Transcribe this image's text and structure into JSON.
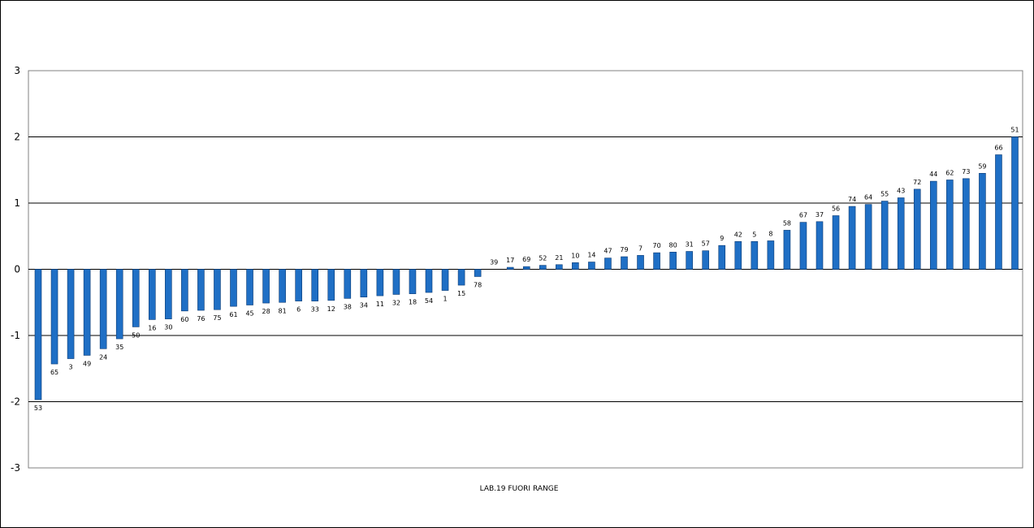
{
  "chart_data": {
    "type": "bar",
    "title": "",
    "xlabel": "",
    "ylabel": "",
    "ylim": [
      -3,
      3
    ],
    "yticks": [
      3,
      2,
      1,
      0,
      -1,
      -2,
      -3
    ],
    "grid": true,
    "legend": "none",
    "annotation": "LAB.19 FUORI RANGE",
    "bar_color": "#1F6FC5",
    "bar_edge_color": "#0B3A73",
    "categories": [
      "53",
      "65",
      "3",
      "49",
      "24",
      "35",
      "50",
      "16",
      "30",
      "60",
      "76",
      "75",
      "61",
      "45",
      "28",
      "81",
      "6",
      "33",
      "12",
      "38",
      "34",
      "11",
      "32",
      "18",
      "54",
      "1",
      "15",
      "78",
      "39",
      "17",
      "69",
      "52",
      "21",
      "10",
      "14",
      "47",
      "79",
      "7",
      "70",
      "80",
      "31",
      "57",
      "9",
      "42",
      "5",
      "8",
      "58",
      "67",
      "37",
      "56",
      "74",
      "64",
      "55",
      "43",
      "72",
      "44",
      "62",
      "73",
      "59",
      "66",
      "51"
    ],
    "values": [
      -1.97,
      -1.43,
      -1.35,
      -1.3,
      -1.2,
      -1.05,
      -0.87,
      -0.76,
      -0.75,
      -0.63,
      -0.62,
      -0.61,
      -0.56,
      -0.54,
      -0.51,
      -0.5,
      -0.48,
      -0.48,
      -0.47,
      -0.44,
      -0.42,
      -0.4,
      -0.38,
      -0.37,
      -0.35,
      -0.32,
      -0.24,
      -0.11,
      0.0,
      0.03,
      0.04,
      0.06,
      0.07,
      0.1,
      0.11,
      0.17,
      0.19,
      0.21,
      0.25,
      0.26,
      0.27,
      0.28,
      0.36,
      0.42,
      0.42,
      0.43,
      0.59,
      0.71,
      0.72,
      0.81,
      0.95,
      0.98,
      1.03,
      1.08,
      1.21,
      1.33,
      1.35,
      1.37,
      1.45,
      1.73,
      2.0
    ]
  }
}
